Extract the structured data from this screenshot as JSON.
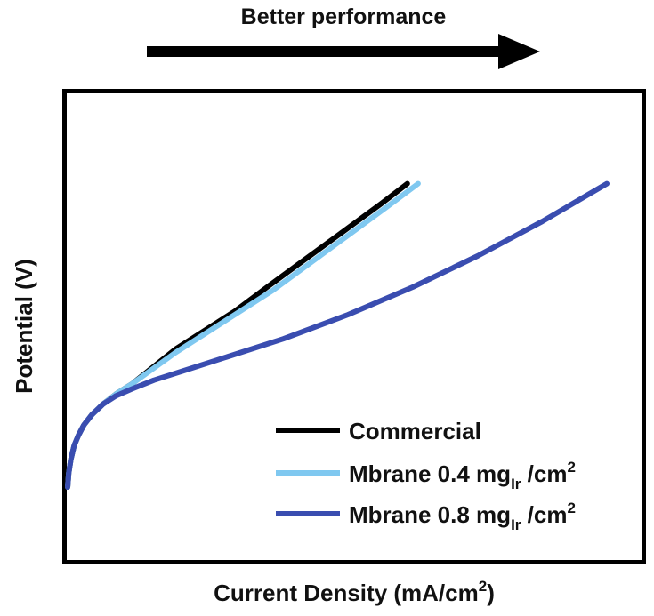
{
  "chart_data": {
    "type": "line",
    "annotation": {
      "text": "Better performance"
    },
    "xlabel": {
      "main": "Current Density (mA/cm",
      "sup": "2",
      "tail": ")"
    },
    "ylabel": "Potential (V)",
    "xlim": [
      0,
      100
    ],
    "ylim": [
      0,
      100
    ],
    "grid": false,
    "legend_position": "bottom-right",
    "series": [
      {
        "name": "Commercial",
        "label_parts": {
          "main": "Commercial"
        },
        "color": "#000000",
        "x": [
          0,
          0.2,
          0.6,
          1.2,
          2,
          3,
          4.5,
          6.5,
          9,
          12,
          16,
          20,
          25,
          31,
          37,
          44,
          51,
          58,
          63
        ],
        "y": [
          0,
          4,
          8,
          12,
          15,
          18,
          21,
          24,
          27,
          30,
          35,
          40,
          45,
          51,
          58,
          66,
          74,
          82,
          88
        ]
      },
      {
        "name": "Mbrane 0.4 mgIr /cm2",
        "label_parts": {
          "main": "Mbrane 0.4 mg",
          "sub": "Ir",
          "tail": " /cm",
          "sup": "2"
        },
        "color": "#7fc8f0",
        "x": [
          0,
          0.2,
          0.6,
          1.2,
          2,
          3,
          4.5,
          6.5,
          9,
          12,
          16,
          20,
          25,
          31,
          38,
          45,
          52,
          59,
          65
        ],
        "y": [
          0,
          4,
          8,
          12,
          15,
          18,
          21,
          24,
          27,
          30,
          34.5,
          39,
          44,
          50,
          57,
          65,
          73,
          81,
          88
        ]
      },
      {
        "name": "Mbrane 0.8 mgIr /cm2",
        "label_parts": {
          "main": "Mbrane 0.8 mg",
          "sub": "Ir",
          "tail": " /cm",
          "sup": "2"
        },
        "color": "#3a4db0",
        "x": [
          0,
          0.2,
          0.6,
          1.2,
          2,
          3,
          4.5,
          6.5,
          9,
          12,
          16,
          22,
          30,
          40,
          52,
          64,
          76,
          88,
          100
        ],
        "y": [
          0,
          4,
          8,
          12,
          15,
          18,
          21,
          24,
          26.5,
          28.5,
          31,
          34,
          38,
          43,
          50,
          58,
          67,
          77,
          88
        ]
      }
    ]
  }
}
